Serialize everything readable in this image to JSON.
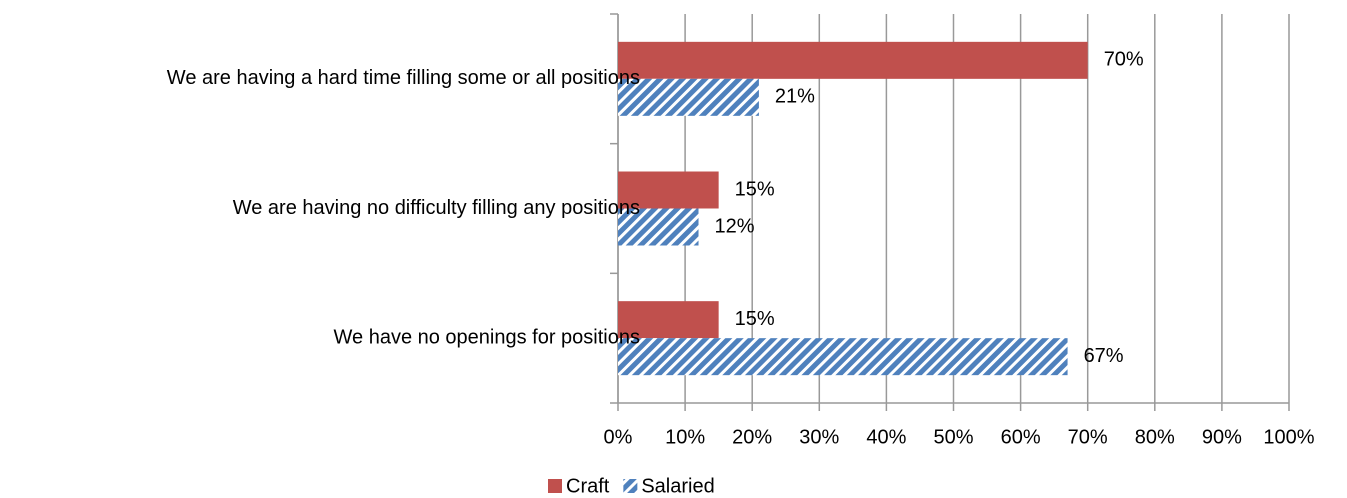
{
  "chart_data": {
    "type": "bar",
    "orientation": "horizontal",
    "categories": [
      "We are having a hard time filling some or all positions",
      "We are having no difficulty filling any positions",
      "We have no openings for positions"
    ],
    "series": [
      {
        "name": "Craft",
        "color": "#c0504d",
        "values": [
          70,
          15,
          15
        ],
        "value_labels": [
          "70%",
          "15%",
          "15%"
        ]
      },
      {
        "name": "Salaried",
        "color": "#4f81bd",
        "hatch": true,
        "values": [
          21,
          12,
          67
        ],
        "value_labels": [
          "21%",
          "12%",
          "67%"
        ]
      }
    ],
    "xlim": [
      0,
      100
    ],
    "xticks": [
      {
        "value": 0,
        "label": "0%"
      },
      {
        "value": 10,
        "label": "10%"
      },
      {
        "value": 20,
        "label": "20%"
      },
      {
        "value": 30,
        "label": "30%"
      },
      {
        "value": 40,
        "label": "40%"
      },
      {
        "value": 50,
        "label": "50%"
      },
      {
        "value": 60,
        "label": "60%"
      },
      {
        "value": 70,
        "label": "70%"
      },
      {
        "value": 80,
        "label": "80%"
      },
      {
        "value": 90,
        "label": "90%"
      },
      {
        "value": 100,
        "label": "100%"
      }
    ],
    "grid": true,
    "legend": "bottom"
  }
}
